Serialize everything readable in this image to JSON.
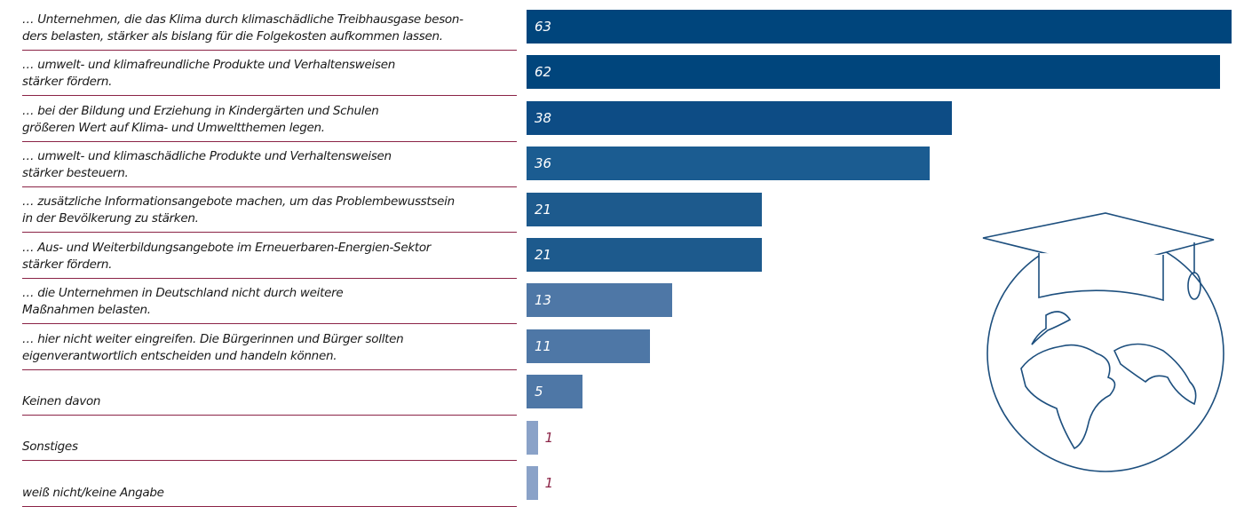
{
  "chart_data": {
    "type": "bar",
    "orientation": "horizontal",
    "categories": [
      "… Unternehmen, die das Klima durch klimaschädliche Treibhausgase beson-\nders belasten, stärker als bislang für die Folgekosten aufkommen lassen.",
      "… umwelt- und klimafreundliche Produkte und Verhaltensweisen\nstärker fördern.",
      "… bei der Bildung und Erziehung in Kindergärten und Schulen\ngrößeren Wert auf Klima- und Umweltthemen legen.",
      "… umwelt- und klimaschädliche Produkte und Verhaltensweisen\nstärker besteuern.",
      "… zusätzliche Informationsangebote machen, um das Problembewusstsein\nin der Bevölkerung zu stärken.",
      "… Aus- und Weiterbildungsangebote im Erneuerbaren-Energien-Sektor\nstärker fördern.",
      "… die Unternehmen in Deutschland nicht durch weitere\nMaßnahmen belasten.",
      "… hier nicht weiter eingreifen. Die Bürgerinnen und Bürger sollten\neigenverantwortlich entscheiden und handeln können.",
      "Keinen davon",
      "Sonstiges",
      "weiß nicht/keine Angabe"
    ],
    "values": [
      63,
      62,
      38,
      36,
      21,
      21,
      13,
      11,
      5,
      1,
      1
    ],
    "colors": [
      "#00457c",
      "#00457c",
      "#0d4c85",
      "#1b5c91",
      "#1d5a8d",
      "#1d5a8d",
      "#4e77a6",
      "#4e77a6",
      "#4e77a6",
      "#8aa2c8",
      "#8aa2c8"
    ]
  }
}
